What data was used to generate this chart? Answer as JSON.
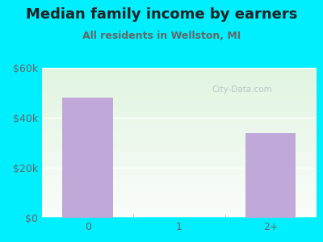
{
  "title": "Median family income by earners",
  "subtitle": "All residents in Wellston, MI",
  "categories": [
    "0",
    "1",
    "2+"
  ],
  "values": [
    48000,
    0,
    34000
  ],
  "bar_color": "#c0a8d8",
  "background_outer": "#00efff",
  "ylim": [
    0,
    60000
  ],
  "yticks": [
    0,
    20000,
    40000,
    60000
  ],
  "ytick_labels": [
    "$0",
    "$20k",
    "$40k",
    "$60k"
  ],
  "title_fontsize": 13,
  "subtitle_fontsize": 9,
  "tick_fontsize": 9,
  "watermark": "City-Data.com",
  "bar_width": 0.55
}
